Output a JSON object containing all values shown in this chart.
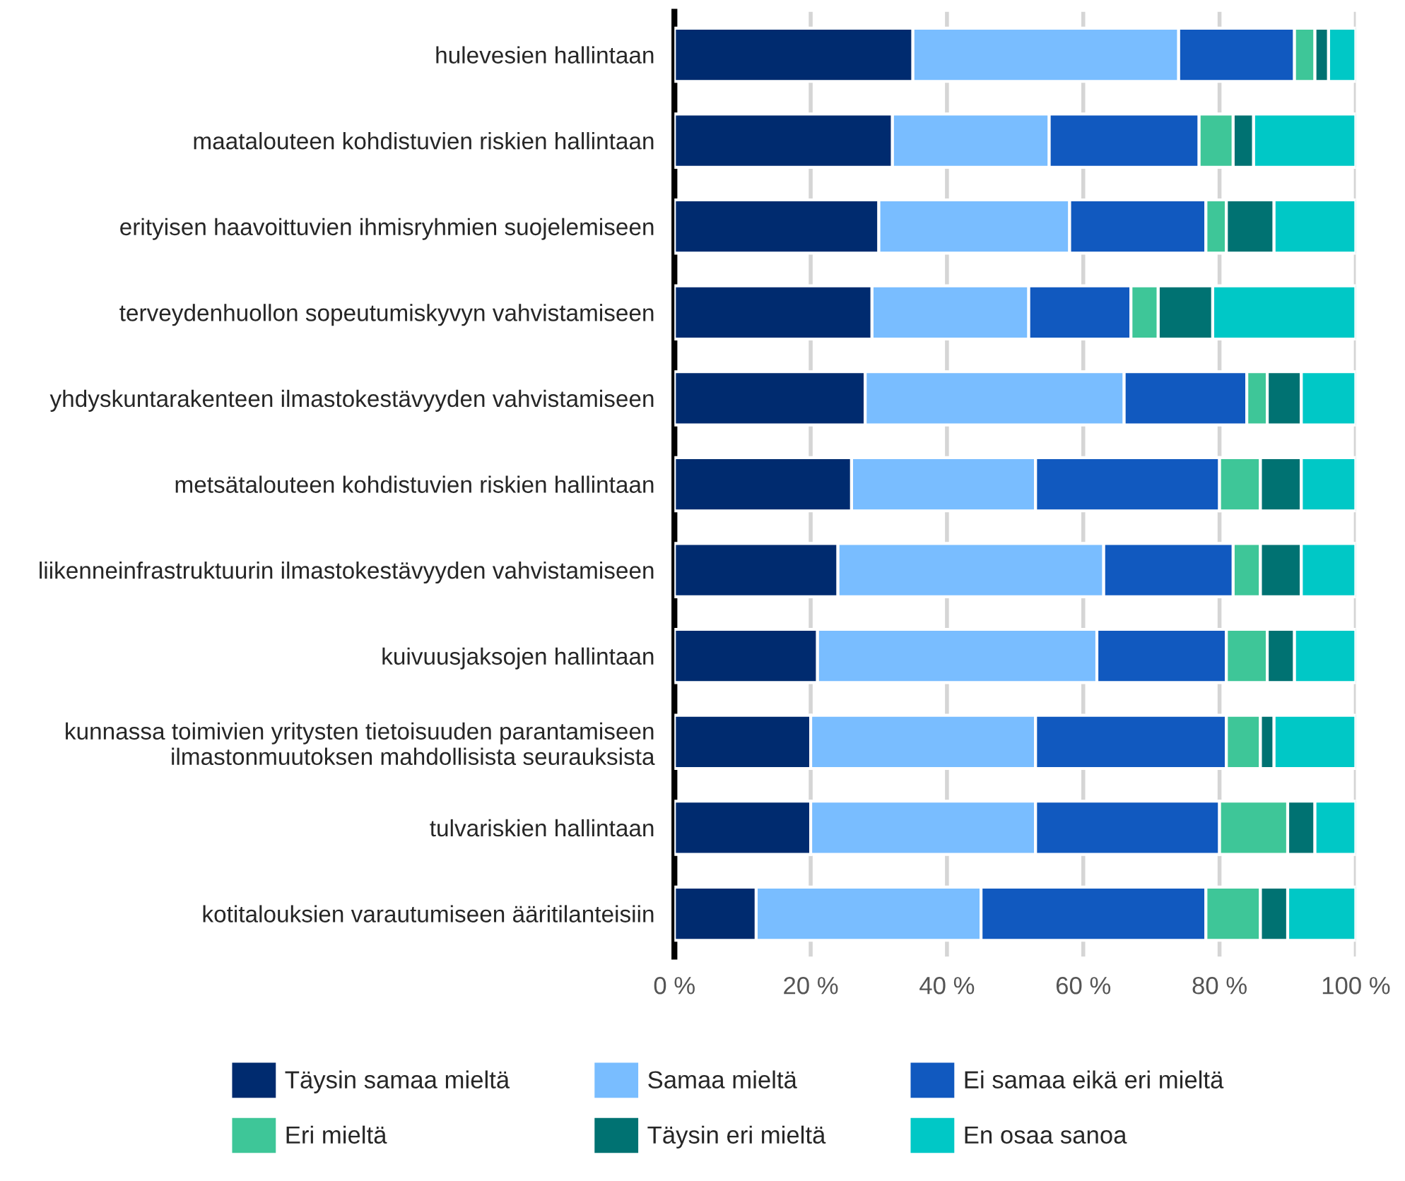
{
  "chart_data": {
    "type": "bar",
    "orientation": "horizontal",
    "stacked": true,
    "categories": [
      "hulevesien hallintaan",
      "maatalouteen kohdistuvien riskien hallintaan",
      "erityisen haavoittuvien ihmisryhmien suojelemiseen",
      "terveydenhuollon sopeutumiskyvyn vahvistamiseen",
      "yhdyskuntarakenteen ilmastokestävyyden vahvistamiseen",
      "metsätalouteen kohdistuvien riskien hallintaan",
      "liikenneinfrastruktuurin ilmastokestävyyden vahvistamiseen",
      "kuivuusjaksojen hallintaan",
      "kunnassa toimivien yritysten tietoisuuden parantamiseen\nilmastonmuutoksen mahdollisista seurauksista",
      "tulvariskien hallintaan",
      "kotitalouksien varautumiseen ääritilanteisiin"
    ],
    "series": [
      {
        "name": "Täysin samaa mieltä",
        "color": "#002b6f",
        "values": [
          35,
          32,
          30,
          29,
          28,
          26,
          24,
          21,
          20,
          20,
          12
        ]
      },
      {
        "name": "Samaa mieltä",
        "color": "#79bdff",
        "values": [
          39,
          23,
          28,
          23,
          38,
          27,
          39,
          41,
          33,
          33,
          33
        ]
      },
      {
        "name": "Ei samaa eikä eri mieltä",
        "color": "#1159bf",
        "values": [
          17,
          22,
          20,
          15,
          18,
          27,
          19,
          19,
          28,
          27,
          33
        ]
      },
      {
        "name": "Eri mieltä",
        "color": "#3ec698",
        "values": [
          3,
          5,
          3,
          4,
          3,
          6,
          4,
          6,
          5,
          10,
          8
        ]
      },
      {
        "name": "Täysin eri mieltä",
        "color": "#007272",
        "values": [
          2,
          3,
          7,
          8,
          5,
          6,
          6,
          4,
          2,
          4,
          4
        ]
      },
      {
        "name": "En osaa sanoa",
        "color": "#00c8c6",
        "values": [
          4,
          15,
          12,
          21,
          8,
          8,
          8,
          9,
          12,
          6,
          10
        ]
      }
    ],
    "xlim": [
      0,
      100
    ],
    "xticks": [
      {
        "value": 0,
        "label": "0 %"
      },
      {
        "value": 20,
        "label": "20 %"
      },
      {
        "value": 40,
        "label": "40 %"
      },
      {
        "value": 60,
        "label": "60 %"
      },
      {
        "value": 80,
        "label": "80 %"
      },
      {
        "value": 100,
        "label": "100 %"
      }
    ],
    "grid": "x",
    "legend": "bottom"
  }
}
